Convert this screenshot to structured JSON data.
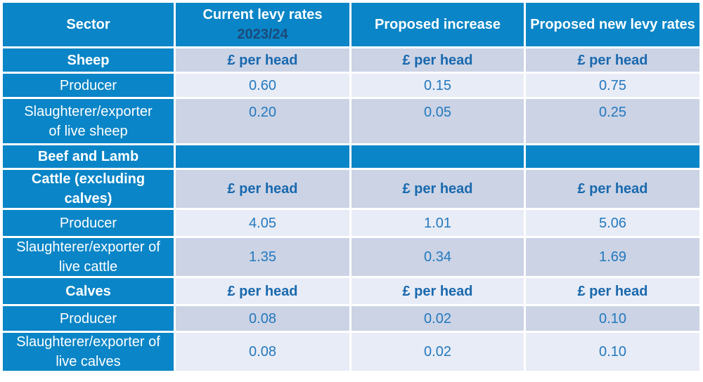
{
  "table": {
    "header": {
      "sector": "Sector",
      "current_levy_line1": "Current levy rates",
      "current_levy_line2": "2023/24",
      "proposed_increase": "Proposed increase",
      "proposed_new": "Proposed new levy rates"
    },
    "unit_label": "£ per head",
    "rows": [
      {
        "label": "Sheep",
        "values": [
          "£ per head",
          "£ per head",
          "£ per head"
        ]
      },
      {
        "label": "Producer",
        "values": [
          "0.60",
          "0.15",
          "0.75"
        ]
      },
      {
        "label": "Slaughterer/exporter\nof live sheep",
        "values": [
          "0.20",
          "0.05",
          "0.25"
        ]
      },
      {
        "label": "Beef and Lamb",
        "values": [
          "",
          "",
          ""
        ]
      },
      {
        "label": "Cattle (excluding\ncalves)",
        "values": [
          "£ per head",
          "£ per head",
          "£ per head"
        ]
      },
      {
        "label": "Producer",
        "values": [
          "4.05",
          "1.01",
          "5.06"
        ]
      },
      {
        "label": "Slaughterer/exporter of\nlive cattle",
        "values": [
          "1.35",
          "0.34",
          "1.69"
        ]
      },
      {
        "label": "Calves",
        "values": [
          "£ per head",
          "£ per head",
          "£ per head"
        ]
      },
      {
        "label": "Producer",
        "values": [
          "0.08",
          "0.02",
          "0.10"
        ]
      },
      {
        "label": "Slaughterer/exporter of\nlive calves",
        "values": [
          "0.08",
          "0.02",
          "0.10"
        ]
      }
    ]
  },
  "colors": {
    "header_blue": "#0a85c7",
    "band_dark": "#cbd3e5",
    "band_light": "#e8ecf6",
    "value_text": "#2478bd",
    "unit_text": "#1969ae",
    "year_text_navy": "#1b4a7a",
    "gridline_white": "#ffffff"
  },
  "chart_data": {
    "type": "table",
    "columns": [
      "Sector",
      "Current levy rates 2023/24",
      "Proposed increase",
      "Proposed new levy rates"
    ],
    "units": "£ per head",
    "rows": [
      [
        "Sheep",
        "£ per head",
        "£ per head",
        "£ per head"
      ],
      [
        "Producer",
        "0.60",
        "0.15",
        "0.75"
      ],
      [
        "Slaughterer/exporter of live sheep",
        "0.20",
        "0.05",
        "0.25"
      ],
      [
        "Beef and Lamb",
        "",
        "",
        ""
      ],
      [
        "Cattle (excluding calves)",
        "£ per head",
        "£ per head",
        "£ per head"
      ],
      [
        "Producer",
        "4.05",
        "1.01",
        "5.06"
      ],
      [
        "Slaughterer/exporter of live cattle",
        "1.35",
        "0.34",
        "1.69"
      ],
      [
        "Calves",
        "£ per head",
        "£ per head",
        "£ per head"
      ],
      [
        "Producer",
        "0.08",
        "0.02",
        "0.10"
      ],
      [
        "Slaughterer/exporter of live calves",
        "0.08",
        "0.02",
        "0.10"
      ]
    ]
  }
}
